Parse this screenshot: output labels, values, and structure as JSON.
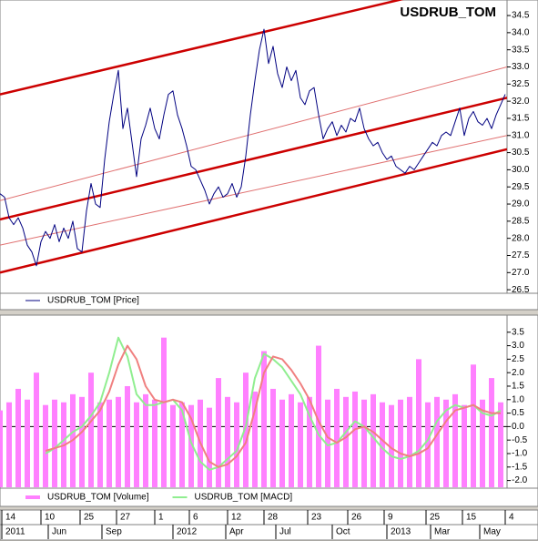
{
  "chart_data": [
    {
      "type": "line",
      "title": "USDRUB_TOM",
      "xlim": [
        0,
        111.4
      ],
      "ylim": [
        26.45,
        34.9
      ],
      "yticks": [
        26.5,
        {
          "value": 27,
          "label": "27.0"
        },
        27.5,
        {
          "value": 28,
          "label": "28.0"
        },
        28.5,
        {
          "value": 29,
          "label": "29.0"
        },
        29.5,
        {
          "value": 30,
          "label": "30.0"
        },
        30.5,
        {
          "value": 31,
          "label": "31.0"
        },
        31.5,
        {
          "value": 32,
          "label": "32.0"
        },
        32.5,
        {
          "value": 33,
          "label": "33.0"
        },
        33.5,
        {
          "value": 34,
          "label": "34.0"
        },
        34.5
      ],
      "series": [
        {
          "name": "USDRUB_TOM [Price]",
          "color": "#000080",
          "values": [
            29.3,
            29.2,
            28.6,
            28.4,
            28.6,
            28.3,
            27.8,
            27.6,
            27.2,
            27.9,
            28.2,
            28.0,
            28.4,
            27.9,
            28.3,
            28.0,
            28.5,
            27.7,
            27.6,
            28.8,
            29.6,
            29.0,
            28.9,
            30.3,
            31.4,
            32.2,
            32.9,
            31.2,
            31.8,
            30.8,
            29.8,
            30.9,
            31.3,
            31.8,
            31.2,
            30.9,
            31.6,
            32.2,
            32.3,
            31.6,
            31.2,
            30.7,
            30.1,
            30.0,
            29.7,
            29.4,
            29.0,
            29.3,
            29.5,
            29.2,
            29.3,
            29.6,
            29.2,
            29.5,
            30.4,
            31.6,
            32.6,
            33.5,
            34.1,
            33.1,
            33.6,
            32.8,
            32.4,
            33.0,
            32.6,
            32.9,
            32.1,
            31.9,
            32.3,
            32.4,
            31.6,
            30.9,
            31.2,
            31.4,
            31.0,
            31.3,
            31.1,
            31.5,
            31.4,
            31.8,
            31.2,
            30.9,
            30.7,
            30.8,
            30.5,
            30.3,
            30.4,
            30.1,
            30.0,
            29.9,
            30.1,
            30.0,
            30.2,
            30.4,
            30.6,
            30.8,
            30.7,
            31.0,
            31.1,
            31.0,
            31.4,
            31.8,
            31.0,
            31.5,
            31.7,
            31.4,
            31.3,
            31.5,
            31.2,
            31.6,
            31.9,
            32.2
          ]
        }
      ],
      "channels": [
        {
          "start": 32.2,
          "end": 35.7,
          "color": "#cc0000",
          "style": "thick"
        },
        {
          "start": 29.1,
          "end": 33.0,
          "color": "#e07070",
          "style": "thin"
        },
        {
          "start": 28.55,
          "end": 32.1,
          "color": "#cc0000",
          "style": "thick"
        },
        {
          "start": 27.8,
          "end": 31.0,
          "color": "#e07070",
          "style": "thin"
        },
        {
          "start": 27.0,
          "end": 30.6,
          "color": "#cc0000",
          "style": "thick"
        }
      ]
    },
    {
      "type": "combo",
      "xlim": [
        0,
        55.7
      ],
      "ylim": [
        -2.25,
        4.1
      ],
      "reference_line": 0,
      "yticks": [
        3.5,
        {
          "value": 3,
          "label": "3.0"
        },
        2.5,
        {
          "value": 2,
          "label": "2.0"
        },
        1.5,
        {
          "value": 1,
          "label": "1.0"
        },
        0.5,
        {
          "value": 0,
          "label": "0.0"
        },
        -0.5,
        {
          "value": -1,
          "label": "-1.0"
        },
        -1.5,
        {
          "value": -2,
          "label": "-2.0"
        }
      ],
      "series": [
        {
          "name": "USDRUB_TOM [Volume]",
          "type": "bar",
          "color": "#ff80ff",
          "values": [
            0.6,
            0.9,
            1.4,
            1.0,
            2.0,
            0.8,
            1.0,
            0.9,
            1.2,
            1.1,
            2.0,
            0.9,
            1.0,
            1.1,
            1.5,
            0.9,
            1.2,
            1.0,
            3.3,
            0.8,
            0.9,
            0.8,
            1.0,
            0.7,
            1.8,
            1.1,
            0.9,
            2.0,
            1.3,
            2.8,
            1.4,
            1.0,
            1.2,
            0.9,
            1.1,
            3.0,
            1.0,
            1.4,
            1.1,
            1.3,
            1.0,
            1.2,
            0.9,
            0.8,
            1.0,
            1.1,
            2.5,
            0.9,
            1.1,
            1.0,
            1.2,
            0.8,
            2.3,
            1.0,
            1.8,
            0.9
          ]
        },
        {
          "name": "USDRUB_TOM [MACD]",
          "type": "line",
          "color": "#90ee90",
          "values": [
            null,
            null,
            null,
            null,
            null,
            -1.0,
            -0.8,
            -0.5,
            -0.2,
            0.0,
            0.4,
            0.9,
            2.0,
            3.3,
            2.6,
            1.2,
            0.8,
            0.8,
            0.9,
            1.0,
            0.6,
            -0.6,
            -1.3,
            -1.6,
            -1.5,
            -1.2,
            -0.9,
            0.0,
            1.8,
            2.7,
            2.5,
            2.2,
            1.7,
            1.2,
            0.4,
            -0.3,
            -0.7,
            -0.6,
            -0.2,
            0.2,
            0.0,
            -0.4,
            -0.8,
            -1.1,
            -1.2,
            -1.1,
            -0.9,
            -0.5,
            0.2,
            0.6,
            0.8,
            0.7,
            0.8,
            0.5,
            0.4,
            0.6
          ]
        },
        {
          "type": "line",
          "color": "#f08080",
          "values": [
            null,
            null,
            null,
            null,
            null,
            -0.9,
            -0.8,
            -0.7,
            -0.5,
            -0.2,
            0.2,
            0.6,
            1.3,
            2.3,
            3.0,
            2.5,
            1.5,
            1.0,
            0.9,
            1.0,
            0.9,
            0.3,
            -0.6,
            -1.3,
            -1.5,
            -1.4,
            -1.1,
            -0.6,
            0.6,
            2.0,
            2.6,
            2.5,
            2.1,
            1.6,
            1.0,
            0.2,
            -0.4,
            -0.6,
            -0.4,
            -0.1,
            0.0,
            -0.2,
            -0.5,
            -0.8,
            -1.0,
            -1.1,
            -1.0,
            -0.8,
            -0.3,
            0.2,
            0.6,
            0.7,
            0.8,
            0.6,
            0.5,
            0.5
          ]
        }
      ]
    }
  ],
  "date_axis": {
    "xlim": [
      0,
      111.4
    ],
    "day_ticks": [
      {
        "value": 0.4,
        "label": "14"
      },
      {
        "value": 9,
        "label": "10"
      },
      {
        "value": 17.6,
        "label": "25"
      },
      {
        "value": 25.6,
        "label": "27"
      },
      {
        "value": 34,
        "label": "1"
      },
      {
        "value": 41.6,
        "label": "6"
      },
      {
        "value": 50,
        "label": "12"
      },
      {
        "value": 58,
        "label": "28"
      },
      {
        "value": 67.6,
        "label": "23"
      },
      {
        "value": 76.4,
        "label": "26"
      },
      {
        "value": 84.4,
        "label": "9"
      },
      {
        "value": 93.6,
        "label": "25"
      },
      {
        "value": 101.6,
        "label": "15"
      },
      {
        "value": 111,
        "label": "4"
      }
    ],
    "month_ticks": [
      {
        "value": 0.4,
        "label": "2011"
      },
      {
        "value": 10.6,
        "label": "Jun"
      },
      {
        "value": 22.4,
        "label": "Sep"
      },
      {
        "value": 38,
        "label": "2012"
      },
      {
        "value": 49.6,
        "label": "Apr"
      },
      {
        "value": 60.6,
        "label": "Jul"
      },
      {
        "value": 73,
        "label": "Oct"
      },
      {
        "value": 85,
        "label": "2013"
      },
      {
        "value": 94.6,
        "label": "Mar"
      },
      {
        "value": 105.4,
        "label": "May"
      }
    ]
  }
}
